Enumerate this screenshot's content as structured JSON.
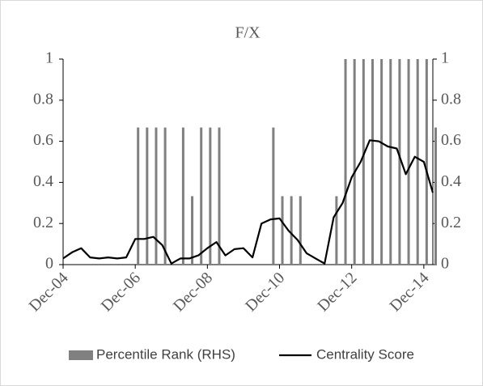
{
  "chart_data": {
    "type": "combo",
    "title": "F/X",
    "categories": [
      "Dec-04",
      null,
      null,
      null,
      null,
      null,
      null,
      null,
      "Dec-06",
      null,
      null,
      null,
      null,
      null,
      null,
      null,
      "Dec-08",
      null,
      null,
      null,
      null,
      null,
      null,
      null,
      "Dec-10",
      null,
      null,
      null,
      null,
      null,
      null,
      null,
      "Dec-12",
      null,
      null,
      null,
      null,
      null,
      null,
      null,
      "Dec-14",
      null
    ],
    "series": [
      {
        "name": "Percentile Rank (RHS)",
        "type": "bar",
        "axis": "y2",
        "color": "#808080",
        "values": [
          0,
          0,
          0,
          0,
          0,
          0,
          0,
          0,
          0.667,
          0.667,
          0.667,
          0.667,
          0,
          0.667,
          0.333,
          0.667,
          0.667,
          0.667,
          0,
          0,
          0,
          0,
          0,
          0.667,
          0.333,
          0.333,
          0.333,
          0,
          0,
          0,
          0.333,
          1,
          1,
          1,
          1,
          1,
          1,
          1,
          1,
          1,
          1,
          0.667
        ]
      },
      {
        "name": "Centrality Score",
        "type": "line",
        "color": "#000000",
        "values": [
          0.03,
          0.06,
          0.08,
          0.035,
          0.03,
          0.035,
          0.03,
          0.035,
          0.125,
          0.125,
          0.135,
          0.095,
          0.005,
          0.03,
          0.03,
          0.045,
          0.08,
          0.11,
          0.045,
          0.075,
          0.08,
          0.035,
          0.2,
          0.22,
          0.225,
          0.165,
          0.12,
          0.055,
          0.03,
          0.005,
          0.23,
          0.3,
          0.425,
          0.5,
          0.605,
          0.6,
          0.575,
          0.565,
          0.44,
          0.525,
          0.5,
          0.35
        ]
      }
    ],
    "ylim": [
      0,
      1
    ],
    "yticks": [
      0,
      0.2,
      0.4,
      0.6,
      0.8,
      1
    ],
    "y2lim": [
      0,
      1
    ],
    "y2ticks": [
      0,
      0.2,
      0.4,
      0.6,
      0.8,
      1
    ],
    "grid": false,
    "legend": "bottom"
  }
}
